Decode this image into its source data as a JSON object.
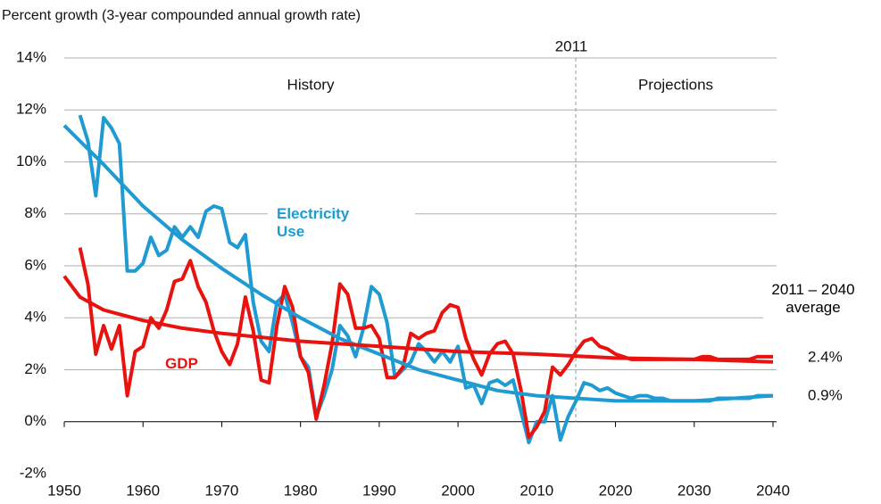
{
  "chart_data": {
    "type": "line",
    "y_label": "Percent growth (3-year compounded annual growth rate)",
    "xlim": [
      1950,
      2040
    ],
    "ylim": [
      -2,
      14
    ],
    "xticks": [
      1950,
      1960,
      1970,
      1980,
      1990,
      2000,
      2010,
      2020,
      2030,
      2040
    ],
    "yticks": [
      {
        "value": -2,
        "label": "-2%"
      },
      {
        "value": 0,
        "label": "0%"
      },
      {
        "value": 2,
        "label": "2%"
      },
      {
        "value": 4,
        "label": "4%"
      },
      {
        "value": 6,
        "label": "6%"
      },
      {
        "value": 8,
        "label": "8%"
      },
      {
        "value": 10,
        "label": "10%"
      },
      {
        "value": 12,
        "label": "12%"
      },
      {
        "value": 14,
        "label": "14%"
      }
    ],
    "grid": true,
    "annotations": {
      "history": "History",
      "projections": "Projections",
      "divider": "2011",
      "average": "2011 – 2040 average",
      "gdp_avg": "2.4%",
      "elec_avg": "0.9%"
    },
    "series": [
      {
        "name": "Electricity Use",
        "color": "#1f9bd1",
        "x": [
          1952,
          1953,
          1954,
          1955,
          1956,
          1957,
          1958,
          1959,
          1960,
          1961,
          1962,
          1963,
          1964,
          1965,
          1966,
          1967,
          1968,
          1969,
          1970,
          1971,
          1972,
          1973,
          1974,
          1975,
          1976,
          1977,
          1978,
          1979,
          1980,
          1981,
          1982,
          1983,
          1984,
          1985,
          1986,
          1987,
          1988,
          1989,
          1990,
          1991,
          1992,
          1993,
          1994,
          1995,
          1996,
          1997,
          1998,
          1999,
          2000,
          2001,
          2002,
          2003,
          2004,
          2005,
          2006,
          2007,
          2008,
          2009,
          2010,
          2011,
          2012,
          2013,
          2014,
          2015,
          2016,
          2017,
          2018,
          2019,
          2020,
          2021,
          2022,
          2023,
          2024,
          2025,
          2026,
          2027,
          2028,
          2029,
          2030,
          2031,
          2032,
          2033,
          2034,
          2035,
          2036,
          2037,
          2038,
          2039,
          2040
        ],
        "values": [
          11.8,
          10.8,
          8.7,
          11.7,
          11.3,
          10.7,
          5.8,
          5.8,
          6.1,
          7.1,
          6.4,
          6.6,
          7.5,
          7.1,
          7.5,
          7.1,
          8.1,
          8.3,
          8.2,
          6.9,
          6.7,
          7.2,
          4.6,
          3.1,
          2.7,
          4.6,
          4.9,
          3.8,
          2.5,
          2.1,
          0.2,
          1.0,
          2.0,
          3.7,
          3.3,
          2.5,
          3.6,
          5.2,
          4.9,
          3.8,
          1.7,
          2.0,
          2.3,
          3.0,
          2.7,
          2.3,
          2.7,
          2.3,
          2.9,
          1.3,
          1.4,
          0.7,
          1.5,
          1.6,
          1.4,
          1.6,
          0.4,
          -0.8,
          0.0,
          0.0,
          1.0,
          -0.7,
          0.2,
          0.8,
          1.5,
          1.4,
          1.2,
          1.3,
          1.1,
          1.0,
          0.9,
          1.0,
          1.0,
          0.9,
          0.9,
          0.8,
          0.8,
          0.8,
          0.8,
          0.8,
          0.8,
          0.9,
          0.9,
          0.9,
          0.9,
          0.9,
          1.0,
          1.0,
          1.0
        ]
      },
      {
        "name": "GDP",
        "color": "#e8130f",
        "x": [
          1952,
          1953,
          1954,
          1955,
          1956,
          1957,
          1958,
          1959,
          1960,
          1961,
          1962,
          1963,
          1964,
          1965,
          1966,
          1967,
          1968,
          1969,
          1970,
          1971,
          1972,
          1973,
          1974,
          1975,
          1976,
          1977,
          1978,
          1979,
          1980,
          1981,
          1982,
          1983,
          1984,
          1985,
          1986,
          1987,
          1988,
          1989,
          1990,
          1991,
          1992,
          1993,
          1994,
          1995,
          1996,
          1997,
          1998,
          1999,
          2000,
          2001,
          2002,
          2003,
          2004,
          2005,
          2006,
          2007,
          2008,
          2009,
          2010,
          2011,
          2012,
          2013,
          2014,
          2015,
          2016,
          2017,
          2018,
          2019,
          2020,
          2021,
          2022,
          2023,
          2024,
          2025,
          2026,
          2027,
          2028,
          2029,
          2030,
          2031,
          2032,
          2033,
          2034,
          2035,
          2036,
          2037,
          2038,
          2039,
          2040
        ],
        "values": [
          6.7,
          5.3,
          2.6,
          3.7,
          2.8,
          3.7,
          1.0,
          2.7,
          2.9,
          4.0,
          3.6,
          4.3,
          5.4,
          5.5,
          6.2,
          5.2,
          4.6,
          3.5,
          2.7,
          2.2,
          3.0,
          4.8,
          3.5,
          1.6,
          1.5,
          3.7,
          5.2,
          4.4,
          2.5,
          1.9,
          0.1,
          1.4,
          3.0,
          5.3,
          4.9,
          3.6,
          3.6,
          3.7,
          3.2,
          1.7,
          1.7,
          2.1,
          3.4,
          3.2,
          3.4,
          3.5,
          4.2,
          4.5,
          4.4,
          3.2,
          2.4,
          1.8,
          2.6,
          3.0,
          3.1,
          2.6,
          1.2,
          -0.6,
          -0.2,
          0.4,
          2.1,
          1.8,
          2.2,
          2.7,
          3.1,
          3.2,
          2.9,
          2.8,
          2.6,
          2.5,
          2.4,
          2.4,
          2.4,
          2.4,
          2.4,
          2.4,
          2.4,
          2.4,
          2.4,
          2.5,
          2.5,
          2.4,
          2.4,
          2.4,
          2.4,
          2.4,
          2.5,
          2.5,
          2.5
        ]
      },
      {
        "color": "#1f9bd1",
        "x": [
          1950,
          1955,
          1960,
          1965,
          1970,
          1975,
          1980,
          1985,
          1990,
          1995,
          2000,
          2005,
          2010,
          2015,
          2020,
          2025,
          2030,
          2035,
          2040
        ],
        "values": [
          11.4,
          9.9,
          8.3,
          7.0,
          5.9,
          4.9,
          4.0,
          3.2,
          2.6,
          2.0,
          1.6,
          1.2,
          1.0,
          0.9,
          0.8,
          0.8,
          0.8,
          0.9,
          1.0
        ]
      },
      {
        "color": "#e8130f",
        "x": [
          1950,
          1952,
          1955,
          1960,
          1965,
          1970,
          1980,
          1990,
          2000,
          2010,
          2020,
          2030,
          2040
        ],
        "values": [
          5.6,
          4.8,
          4.3,
          3.9,
          3.6,
          3.4,
          3.1,
          2.9,
          2.7,
          2.6,
          2.45,
          2.4,
          2.3
        ]
      }
    ]
  }
}
